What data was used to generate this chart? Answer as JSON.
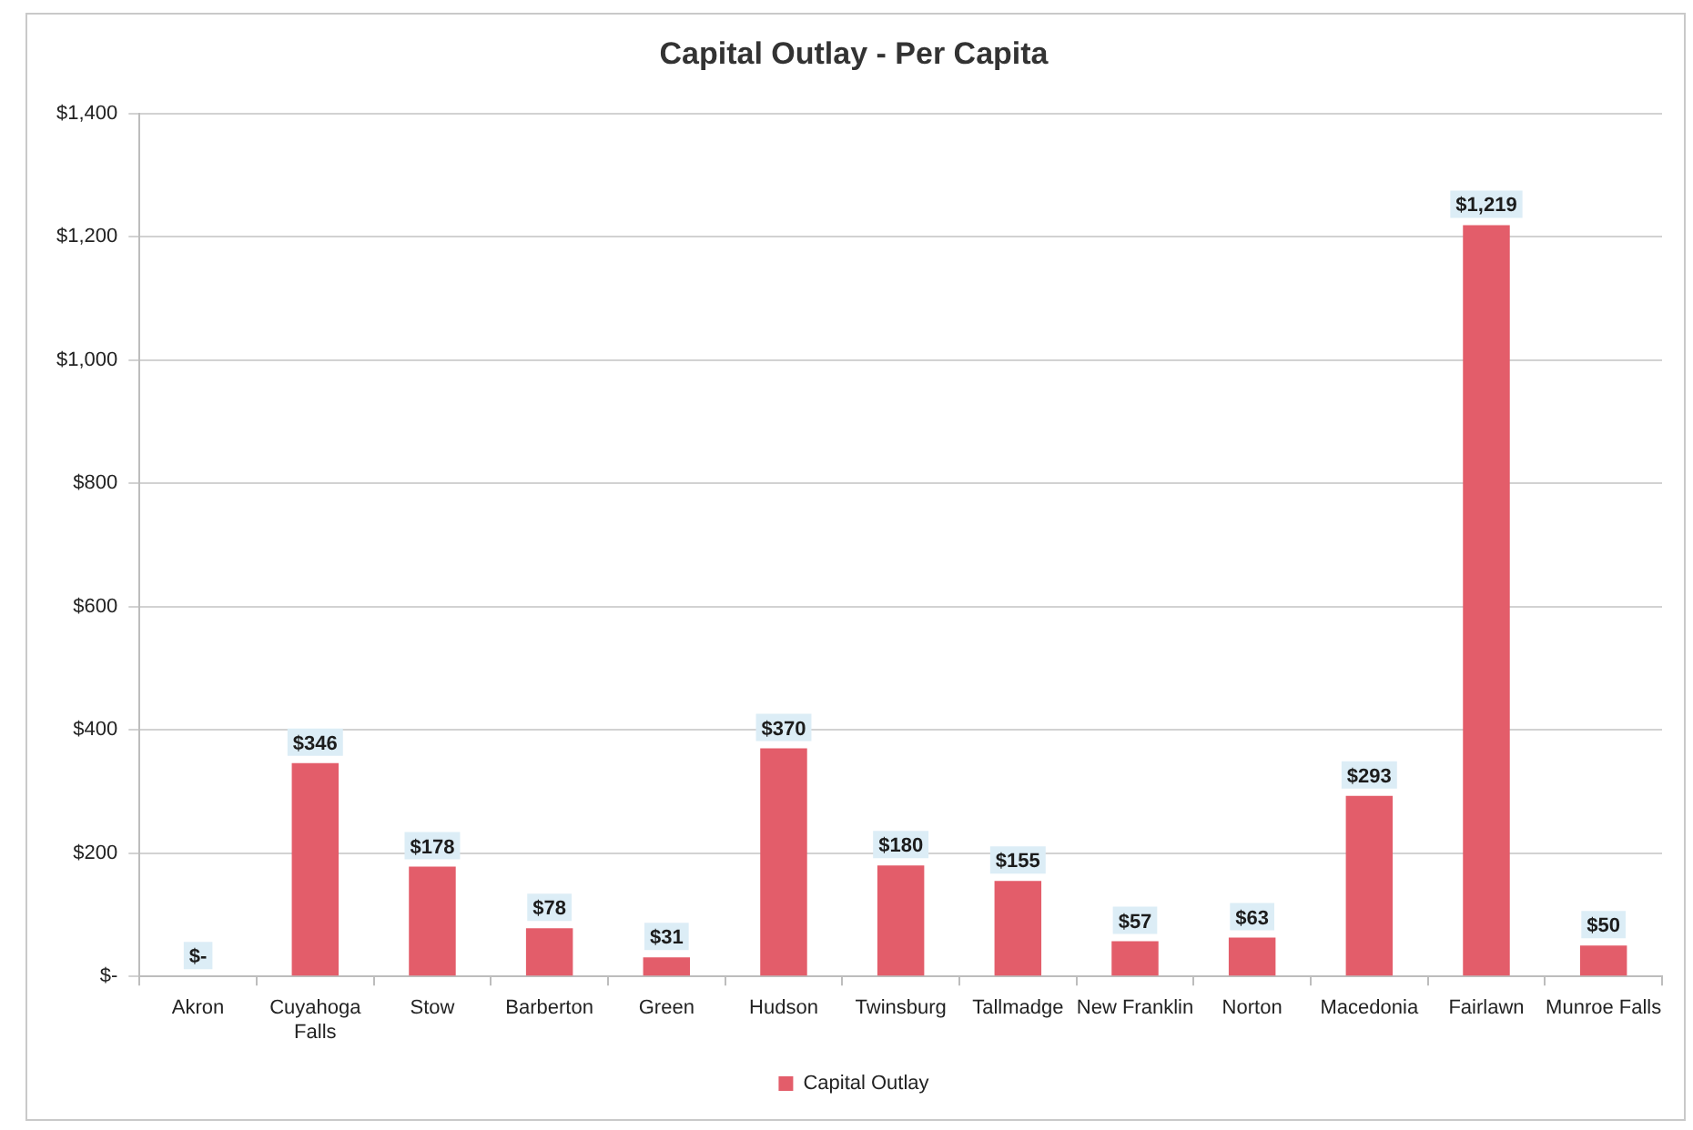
{
  "chart_data": {
    "type": "bar",
    "title": "Capital Outlay - Per Capita",
    "categories": [
      "Akron",
      "Cuyahoga Falls",
      "Stow",
      "Barberton",
      "Green",
      "Hudson",
      "Twinsburg",
      "Tallmadge",
      "New Franklin",
      "Norton",
      "Macedonia",
      "Fairlawn",
      "Munroe Falls"
    ],
    "series": [
      {
        "name": "Capital Outlay",
        "color": "#e35d6a",
        "values": [
          0,
          346,
          178,
          78,
          31,
          370,
          180,
          155,
          57,
          63,
          293,
          1219,
          50
        ],
        "value_labels": [
          "$-",
          "$346",
          "$178",
          "$78",
          "$31",
          "$370",
          "$180",
          "$155",
          "$57",
          "$63",
          "$293",
          "$1,219",
          "$50"
        ]
      }
    ],
    "ylim": [
      0,
      1400
    ],
    "yticks": [
      {
        "value": 0,
        "label": "$-"
      },
      {
        "value": 200,
        "label": "$200"
      },
      {
        "value": 400,
        "label": "$400"
      },
      {
        "value": 600,
        "label": "$600"
      },
      {
        "value": 800,
        "label": "$800"
      },
      {
        "value": 1000,
        "label": "$1,000"
      },
      {
        "value": 1200,
        "label": "$1,200"
      },
      {
        "value": 1400,
        "label": "$1,400"
      }
    ],
    "grid": "y",
    "legend": "bottom"
  }
}
